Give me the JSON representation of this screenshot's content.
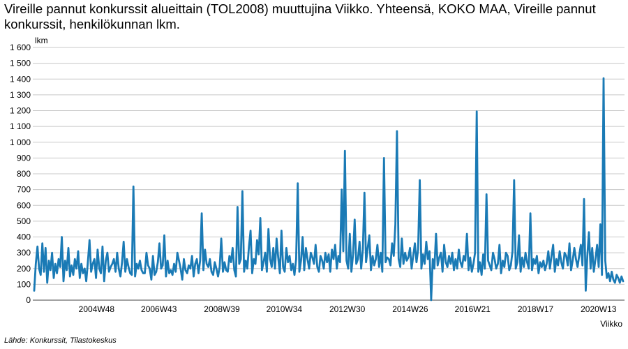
{
  "title": "Vireille pannut konkurssit alueittain (TOL2008) muuttujina Viikko. Yhteensä, KOKO MAA, Vireille pannut konkurssit, henkilökunnan lkm.",
  "source": "Lähde: Konkurssit, Tilastokeskus",
  "chart_data": {
    "type": "line",
    "title": "Vireille pannut konkurssit alueittain (TOL2008) muuttujina Viikko. Yhteensä, KOKO MAA, Vireille pannut konkurssit, henkilökunnan lkm.",
    "xlabel": "Viikko",
    "ylabel": "lkm",
    "ylim": [
      0,
      1600
    ],
    "yticks": [
      0,
      100,
      200,
      300,
      400,
      500,
      600,
      700,
      800,
      900,
      1000,
      1100,
      1200,
      1300,
      1400,
      1500,
      1600
    ],
    "ytick_labels": [
      "0",
      "100",
      "200",
      "300",
      "400",
      "500",
      "600",
      "700",
      "800",
      "900",
      "1 000",
      "1 100",
      "1 200",
      "1 300",
      "1 400",
      "1 500",
      "1 600"
    ],
    "xtick_labels": [
      "2004W48",
      "2006W43",
      "2008W39",
      "2010W34",
      "2012W30",
      "2014W26",
      "2016W21",
      "2018W17",
      "2020W13"
    ],
    "grid": true,
    "legend": "none",
    "line_color": "#1a7ab5",
    "x_start": "2003W01",
    "x_end": "2020W52",
    "series": [
      {
        "name": "",
        "values": [
          60,
          230,
          340,
          200,
          160,
          360,
          180,
          330,
          110,
          250,
          190,
          300,
          140,
          230,
          170,
          260,
          210,
          400,
          120,
          250,
          190,
          330,
          150,
          220,
          160,
          260,
          200,
          310,
          140,
          230,
          170,
          200,
          120,
          240,
          380,
          180,
          230,
          260,
          140,
          320,
          200,
          170,
          340,
          120,
          250,
          300,
          180,
          210,
          230,
          260,
          180,
          300,
          200,
          150,
          240,
          370,
          180,
          260,
          210,
          170,
          160,
          720,
          150,
          230,
          200,
          250,
          190,
          170,
          170,
          300,
          220,
          200,
          130,
          280,
          160,
          180,
          240,
          360,
          200,
          220,
          410,
          150,
          250,
          170,
          190,
          160,
          230,
          180,
          300,
          250,
          200,
          130,
          260,
          190,
          170,
          220,
          200,
          280,
          150,
          230,
          260,
          170,
          250,
          550,
          190,
          320,
          230,
          210,
          260,
          180,
          160,
          240,
          200,
          150,
          210,
          390,
          180,
          240,
          190,
          180,
          280,
          240,
          330,
          190,
          150,
          590,
          230,
          260,
          690,
          180,
          250,
          200,
          340,
          440,
          170,
          260,
          230,
          380,
          290,
          520,
          190,
          240,
          300,
          180,
          450,
          260,
          210,
          330,
          200,
          390,
          270,
          170,
          440,
          210,
          180,
          330,
          240,
          280,
          190,
          230,
          160,
          260,
          740,
          180,
          250,
          400,
          190,
          330,
          260,
          200,
          300,
          270,
          230,
          350,
          210,
          180,
          280,
          250,
          200,
          300,
          240,
          290,
          180,
          320,
          260,
          350,
          200,
          280,
          240,
          700,
          310,
          945,
          250,
          200,
          420,
          180,
          290,
          510,
          230,
          260,
          370,
          200,
          320,
          680,
          240,
          330,
          410,
          190,
          280,
          220,
          260,
          350,
          210,
          300,
          180,
          900,
          240,
          270,
          260,
          220,
          360,
          280,
          480,
          1070,
          260,
          210,
          390,
          230,
          300,
          250,
          270,
          330,
          200,
          280,
          360,
          240,
          320,
          760,
          200,
          290,
          230,
          370,
          260,
          310,
          0,
          260,
          200,
          420,
          220,
          270,
          300,
          180,
          350,
          240,
          210,
          280,
          230,
          300,
          190,
          260,
          200,
          320,
          240,
          210,
          280,
          250,
          420,
          190,
          270,
          180,
          230,
          300,
          1195,
          180,
          240,
          160,
          290,
          200,
          670,
          250,
          220,
          190,
          300,
          260,
          200,
          230,
          350,
          170,
          250,
          210,
          300,
          280,
          190,
          220,
          310,
          760,
          200,
          240,
          410,
          180,
          270,
          210,
          300,
          240,
          200,
          550,
          190,
          260,
          230,
          280,
          170,
          240,
          210,
          250,
          190,
          230,
          310,
          200,
          280,
          350,
          180,
          260,
          220,
          310,
          240,
          200,
          300,
          280,
          220,
          360,
          190,
          250,
          330,
          260,
          210,
          280,
          350,
          220,
          640,
          60,
          280,
          430,
          200,
          330,
          180,
          260,
          350,
          210,
          480,
          160,
          1405,
          250,
          140,
          170,
          120,
          180,
          130,
          110,
          160,
          140,
          110,
          150,
          120
        ]
      }
    ]
  }
}
